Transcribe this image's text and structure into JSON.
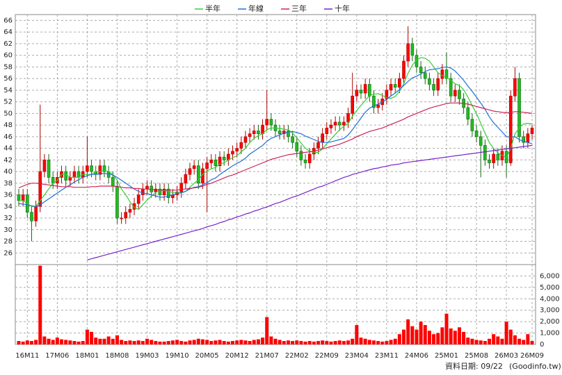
{
  "chart_data": {
    "type": "candlestick",
    "categories": [
      null,
      null,
      "16M11",
      null,
      null,
      null,
      null,
      null,
      null,
      "17M06",
      null,
      null,
      null,
      null,
      null,
      null,
      "18M01",
      null,
      null,
      null,
      null,
      null,
      null,
      "18M08",
      null,
      null,
      null,
      null,
      null,
      null,
      "19M03",
      null,
      null,
      null,
      null,
      null,
      null,
      "19M10",
      null,
      null,
      null,
      null,
      null,
      null,
      "20M05",
      null,
      null,
      null,
      null,
      null,
      null,
      "20M12",
      null,
      null,
      null,
      null,
      null,
      null,
      "21M07",
      null,
      null,
      null,
      null,
      null,
      null,
      "22M02",
      null,
      null,
      null,
      null,
      null,
      null,
      "22M09",
      null,
      null,
      null,
      null,
      null,
      null,
      "23M04",
      null,
      null,
      null,
      null,
      null,
      null,
      "23M11",
      null,
      null,
      null,
      null,
      null,
      null,
      "24M06",
      null,
      null,
      null,
      null,
      null,
      null,
      "25M01",
      null,
      null,
      null,
      null,
      null,
      null,
      "25M08",
      null,
      null,
      null,
      null,
      null,
      null,
      "26M03",
      null,
      null,
      null,
      null,
      null,
      "26M09"
    ],
    "open": [
      36,
      35,
      36,
      33,
      31.5,
      34,
      40,
      42,
      39,
      38,
      39,
      40,
      38.5,
      39,
      40,
      39,
      40,
      41,
      40,
      39.5,
      41,
      40,
      39,
      37.5,
      32,
      32,
      33,
      33.5,
      34.5,
      36,
      37,
      37.5,
      36.5,
      37,
      36,
      37,
      35.5,
      36,
      36.5,
      38,
      39.5,
      40.5,
      41,
      38,
      40.5,
      41.5,
      42,
      41,
      42.5,
      42,
      43,
      43.5,
      44,
      45,
      46,
      46.5,
      47,
      46.5,
      48,
      49,
      48,
      47,
      46.5,
      47,
      46,
      45,
      43.5,
      42,
      41.5,
      43,
      44,
      45,
      46.5,
      47.5,
      48,
      48.5,
      48,
      48.5,
      50,
      53,
      54,
      53.5,
      55,
      53,
      51,
      51.5,
      52.5,
      54,
      55,
      54.5,
      56,
      59,
      62,
      60,
      58,
      57,
      56,
      55,
      54,
      56,
      57.5,
      56,
      53,
      54,
      52.5,
      51,
      49,
      47,
      46,
      44.5,
      42,
      41.5,
      43,
      42,
      43.5,
      41.5,
      53,
      56,
      46,
      45,
      46.5
    ],
    "high": [
      37,
      37,
      37,
      34,
      35,
      51.5,
      43,
      43,
      40,
      40,
      41,
      41,
      40,
      41,
      41,
      41,
      46,
      42,
      41,
      42,
      42,
      41,
      40,
      38.5,
      33,
      34,
      34.5,
      35.5,
      37,
      38,
      38.5,
      38.5,
      38,
      38,
      38,
      38,
      37,
      37.5,
      39,
      40.5,
      41.5,
      42,
      42,
      41.5,
      42.5,
      43,
      43,
      43.5,
      43.5,
      44,
      44.5,
      45,
      46,
      47,
      47.5,
      48,
      48,
      49,
      54,
      50,
      49,
      48,
      48,
      48,
      47,
      46,
      44.5,
      43,
      44,
      45,
      46,
      47.5,
      48.5,
      49,
      49.5,
      49.5,
      49.5,
      51,
      57,
      55,
      55,
      56,
      56,
      54,
      52.5,
      53.5,
      55,
      56,
      56,
      57,
      60,
      65,
      63,
      61,
      59,
      58,
      57,
      56,
      57,
      58.5,
      60.5,
      57,
      55,
      55,
      53.5,
      52,
      50,
      48,
      47,
      45.5,
      43,
      44,
      44,
      44.5,
      44.5,
      54,
      58,
      57,
      47,
      47.5,
      48
    ],
    "low": [
      34,
      34,
      32,
      28,
      30.5,
      33,
      39,
      38,
      37,
      37,
      38,
      37.5,
      37.5,
      38,
      38,
      38,
      39,
      39,
      38.5,
      38.5,
      39,
      38,
      36.5,
      31,
      31,
      31,
      32,
      32.5,
      33.5,
      35,
      36,
      35.5,
      35.5,
      35,
      35,
      34.5,
      34.5,
      35,
      35.5,
      37,
      38.5,
      39.5,
      37,
      37,
      33,
      40.5,
      40,
      40,
      41,
      41,
      42,
      42.5,
      43,
      44,
      45,
      45.5,
      45.5,
      45.5,
      47,
      47,
      46,
      45.5,
      45.5,
      45,
      44,
      42.5,
      41,
      40.5,
      40.5,
      42,
      43,
      44,
      45.5,
      46.5,
      47,
      47,
      47,
      47.5,
      49,
      52,
      52.5,
      52.5,
      52,
      50,
      50,
      50.5,
      51.5,
      53,
      53.5,
      53.5,
      55,
      58,
      59,
      57,
      56,
      55,
      54,
      53,
      53,
      55,
      55,
      52,
      52,
      51.5,
      50,
      48,
      46,
      45,
      39,
      41,
      40.5,
      40.5,
      41,
      41,
      39,
      41,
      52,
      45,
      44,
      44,
      45.5
    ],
    "close": [
      35,
      36,
      33,
      31.5,
      34,
      40,
      42,
      39,
      38,
      39,
      40,
      38.5,
      39,
      40,
      39,
      40,
      41,
      40,
      39.5,
      41,
      40,
      39,
      37.5,
      32,
      32,
      33,
      33.5,
      34.5,
      36,
      37,
      37.5,
      36.5,
      37,
      36,
      37,
      35.5,
      36,
      36.5,
      38,
      39.5,
      40.5,
      41,
      38,
      40.5,
      41.5,
      42,
      41,
      42.5,
      42,
      43,
      43.5,
      44,
      45,
      46,
      46.5,
      47,
      46.5,
      48,
      49,
      48,
      47,
      46.5,
      47,
      46,
      45,
      43.5,
      42,
      41.5,
      43,
      44,
      45,
      46.5,
      47.5,
      48,
      48.5,
      48,
      48.5,
      50,
      53,
      54,
      53.5,
      55,
      53,
      51,
      51.5,
      52.5,
      54,
      55,
      54.5,
      56,
      59,
      62,
      60,
      58,
      57,
      56,
      55,
      54,
      56,
      57.5,
      56,
      53,
      54,
      52.5,
      51,
      49,
      47,
      46,
      44.5,
      42,
      41.5,
      43,
      42,
      43.5,
      41.5,
      53,
      56,
      46,
      45,
      46.5,
      47.5
    ],
    "volume": [
      300,
      250,
      350,
      300,
      400,
      6900,
      700,
      500,
      400,
      600,
      450,
      400,
      350,
      300,
      250,
      300,
      1300,
      1100,
      600,
      500,
      500,
      700,
      500,
      800,
      400,
      300,
      350,
      300,
      350,
      300,
      500,
      400,
      300,
      250,
      250,
      300,
      350,
      400,
      300,
      250,
      350,
      400,
      500,
      450,
      400,
      300,
      350,
      400,
      300,
      250,
      300,
      350,
      400,
      350,
      300,
      400,
      450,
      600,
      2400,
      700,
      500,
      400,
      300,
      350,
      300,
      350,
      300,
      250,
      300,
      250,
      300,
      350,
      300,
      250,
      300,
      350,
      300,
      350,
      500,
      1700,
      600,
      500,
      400,
      350,
      300,
      250,
      300,
      400,
      500,
      900,
      1300,
      2200,
      1600,
      1300,
      2000,
      1700,
      1200,
      900,
      1000,
      1500,
      2700,
      1400,
      1200,
      1500,
      1100,
      600,
      500,
      400,
      350,
      300,
      500,
      900,
      700,
      500,
      2000,
      1300,
      800,
      500,
      400,
      900,
      300
    ],
    "series": [
      {
        "name": "半年",
        "color": "#33cc33",
        "values": [
          35,
          35,
          34.5,
          34,
          34,
          35,
          36,
          37,
          38,
          38.5,
          39.5,
          39.5,
          39,
          39,
          39,
          39.5,
          39.5,
          39.5,
          40,
          40,
          40.2,
          40,
          39.5,
          38.5,
          37,
          36,
          34.8,
          33.8,
          33.5,
          34.3,
          35.1,
          35.8,
          36.4,
          36.8,
          36.7,
          36.6,
          36.4,
          36.4,
          36.3,
          36.6,
          37.3,
          38,
          38.6,
          39.5,
          40.1,
          40.5,
          40.7,
          41.3,
          41.5,
          42,
          42.4,
          42.7,
          43.4,
          44,
          45,
          45.7,
          46.2,
          46.5,
          47.2,
          47.5,
          47.5,
          47.4,
          47.3,
          47.2,
          46.6,
          45.8,
          44.9,
          44,
          43.5,
          43.3,
          43.3,
          43.9,
          44.8,
          45.6,
          46.4,
          47.2,
          47.8,
          48.3,
          49.5,
          50.5,
          51.4,
          52.2,
          53.1,
          53.3,
          53.4,
          53.1,
          52.7,
          52.6,
          52.9,
          53.8,
          55.1,
          56.9,
          58.3,
          59.2,
          59.6,
          59.5,
          59,
          58,
          57,
          56.5,
          56.2,
          55.7,
          55.1,
          54.8,
          54.1,
          52.8,
          51.3,
          50,
          48.3,
          46.6,
          45,
          44,
          43.2,
          42.8,
          42.4,
          44,
          46.5,
          47.5,
          48.2,
          48.3,
          48.2
        ]
      },
      {
        "name": "年線",
        "color": "#1e6fd9",
        "values": [
          34.5,
          34.4,
          34.3,
          34.1,
          34,
          34.3,
          34.8,
          35.3,
          35.8,
          36.3,
          36.8,
          37.3,
          37.7,
          38.2,
          38.6,
          39,
          39.3,
          39.5,
          39.5,
          39.6,
          39.7,
          39.6,
          39.4,
          39,
          38.5,
          38,
          37.5,
          37,
          36.6,
          36.3,
          36.2,
          36,
          35.8,
          35.6,
          35.6,
          35.8,
          36,
          36.2,
          36.4,
          36.6,
          37,
          37.3,
          37.4,
          37.7,
          38.1,
          38.6,
          38.9,
          39.5,
          40,
          40.5,
          41,
          41.4,
          41.8,
          42.3,
          43,
          43.5,
          44,
          44.5,
          45.2,
          45.7,
          46,
          46.3,
          46.6,
          46.8,
          46.9,
          46.7,
          46.5,
          46.1,
          45.8,
          45.5,
          45.2,
          45,
          45,
          45.1,
          45.3,
          45.5,
          45.7,
          46.3,
          47.2,
          48.2,
          49.2,
          50.2,
          50.9,
          51.3,
          51.6,
          52,
          52.4,
          53,
          53.5,
          54.1,
          54.8,
          55.5,
          56.1,
          56.4,
          56.8,
          57.2,
          57.5,
          57.6,
          57.7,
          57.9,
          58,
          57.8,
          57.3,
          56.5,
          55.7,
          54.7,
          53.8,
          52.8,
          51.8,
          50.7,
          49.4,
          48.4,
          47.6,
          46.8,
          46,
          45.9,
          46,
          45.5,
          45.2,
          45,
          44.8
        ]
      },
      {
        "name": "三年",
        "color": "#cc2255",
        "values": [
          37.2,
          37.5,
          37.8,
          38,
          38,
          37.9,
          37.8,
          37.7,
          37.6,
          37.5,
          37.4,
          37.4,
          37.4,
          37.3,
          37.3,
          37.3,
          37.3,
          37.4,
          37.4,
          37.5,
          37.5,
          37.5,
          37.5,
          37.4,
          37.3,
          37.2,
          37.2,
          37.1,
          37.1,
          37,
          37,
          36.9,
          36.9,
          36.8,
          36.8,
          36.8,
          36.8,
          36.8,
          36.9,
          37,
          37.1,
          37.2,
          37.3,
          37.5,
          37.8,
          38,
          38.3,
          38.6,
          38.9,
          39.2,
          39.4,
          39.7,
          40,
          40.3,
          40.6,
          40.9,
          41.2,
          41.5,
          41.8,
          42.1,
          42.3,
          42.5,
          42.7,
          42.9,
          43,
          43.1,
          43.2,
          43.3,
          43.4,
          43.5,
          43.7,
          43.9,
          44.1,
          44.3,
          44.5,
          44.7,
          45,
          45.3,
          45.6,
          46,
          46.3,
          46.6,
          46.9,
          47.1,
          47.3,
          47.5,
          47.8,
          48.1,
          48.4,
          48.7,
          49,
          49.4,
          49.7,
          50,
          50.3,
          50.6,
          50.9,
          51.1,
          51.3,
          51.5,
          51.7,
          51.8,
          51.8,
          51.8,
          51.7,
          51.6,
          51.4,
          51.2,
          51,
          50.8,
          50.6,
          50.4,
          50.3,
          50.2,
          50.1,
          50.2,
          50.3,
          50.3,
          50.2,
          50.1,
          50
        ]
      },
      {
        "name": "十年",
        "color": "#7722cc",
        "values": [
          null,
          null,
          null,
          null,
          null,
          null,
          null,
          null,
          null,
          null,
          null,
          null,
          null,
          null,
          null,
          null,
          24.8,
          25,
          25.2,
          25.4,
          25.6,
          25.8,
          26,
          26.2,
          26.4,
          26.6,
          26.8,
          27,
          27.2,
          27.4,
          27.6,
          27.8,
          28,
          28.2,
          28.4,
          28.6,
          28.8,
          29,
          29.2,
          29.4,
          29.6,
          29.8,
          30,
          30.2,
          30.5,
          30.7,
          30.9,
          31.2,
          31.4,
          31.7,
          31.9,
          32.2,
          32.4,
          32.7,
          32.9,
          33.2,
          33.4,
          33.7,
          33.9,
          34.2,
          34.5,
          34.7,
          35,
          35.3,
          35.6,
          35.8,
          36.1,
          36.4,
          36.7,
          37,
          37.3,
          37.5,
          37.8,
          38.1,
          38.4,
          38.7,
          39,
          39.2,
          39.5,
          39.7,
          39.9,
          40.1,
          40.3,
          40.5,
          40.6,
          40.8,
          40.9,
          41.1,
          41.2,
          41.3,
          41.5,
          41.6,
          41.7,
          41.8,
          41.9,
          42,
          42.1,
          42.2,
          42.3,
          42.4,
          42.5,
          42.6,
          42.7,
          42.8,
          42.9,
          43,
          43.1,
          43.2,
          43.3,
          43.4,
          43.5,
          43.6,
          43.7,
          43.8,
          43.9,
          44,
          44.1,
          44.2,
          44.3,
          44.4,
          44.5
        ]
      }
    ],
    "up_color": "#ff0000",
    "down_color": "#22bb22",
    "volume_color": "#ff0000",
    "ylim": [
      24,
      67
    ],
    "yticks": [
      26,
      28,
      30,
      32,
      34,
      36,
      38,
      40,
      42,
      44,
      46,
      48,
      50,
      52,
      54,
      56,
      58,
      60,
      62,
      64,
      66
    ],
    "y2lim": [
      0,
      7000
    ],
    "y2ticks": [
      0,
      {
        "value": 1000,
        "label": "1,000"
      },
      {
        "value": 2000,
        "label": "2,000"
      },
      {
        "value": 3000,
        "label": "3,000"
      },
      {
        "value": 4000,
        "label": "4,000"
      },
      {
        "value": 5000,
        "label": "5,000"
      },
      {
        "value": 6000,
        "label": "6,000"
      }
    ],
    "grid": true,
    "legend": "top",
    "date_note": "資料日期: 09/22",
    "source": "(Goodinfo.tw)"
  }
}
